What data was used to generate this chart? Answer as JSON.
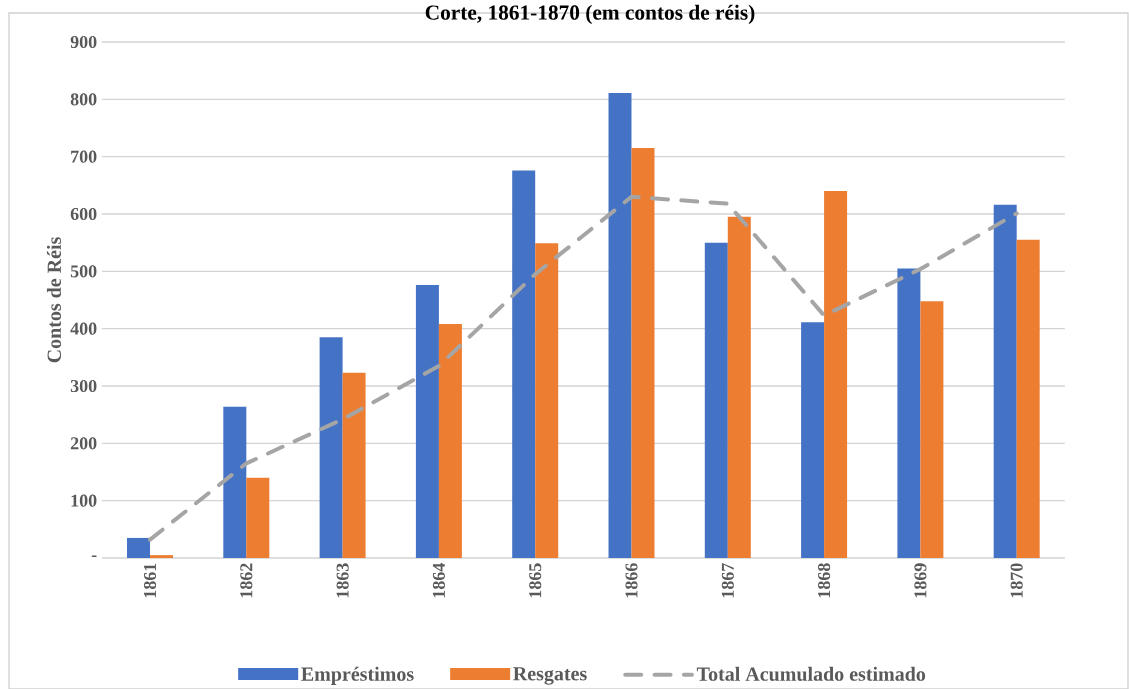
{
  "chart_data": {
    "type": "bar",
    "title": "Corte, 1861-1870 (em contos de réis)",
    "ylabel": "Contos de Réis",
    "categories": [
      "1861",
      "1862",
      "1863",
      "1864",
      "1865",
      "1866",
      "1867",
      "1868",
      "1869",
      "1870"
    ],
    "series": [
      {
        "name": "Empréstimos",
        "color": "#4472c4",
        "values": [
          35,
          264,
          385,
          476,
          676,
          811,
          550,
          411,
          505,
          616
        ]
      },
      {
        "name": "Resgates",
        "color": "#ed7d31",
        "values": [
          5,
          140,
          323,
          408,
          549,
          715,
          595,
          640,
          448,
          555
        ]
      },
      {
        "name": "Total Acumulado estimado",
        "type": "line",
        "line_style": "dashed",
        "color": "#a5a5a5",
        "values": [
          32,
          165,
          242,
          335,
          495,
          630,
          618,
          423,
          504,
          601
        ]
      }
    ],
    "ylim": [
      0,
      900
    ],
    "yticks": [
      {
        "value": 0,
        "label": "-"
      },
      100,
      200,
      300,
      400,
      500,
      600,
      700,
      800,
      900
    ],
    "grid": "y",
    "legend": "bottom"
  }
}
